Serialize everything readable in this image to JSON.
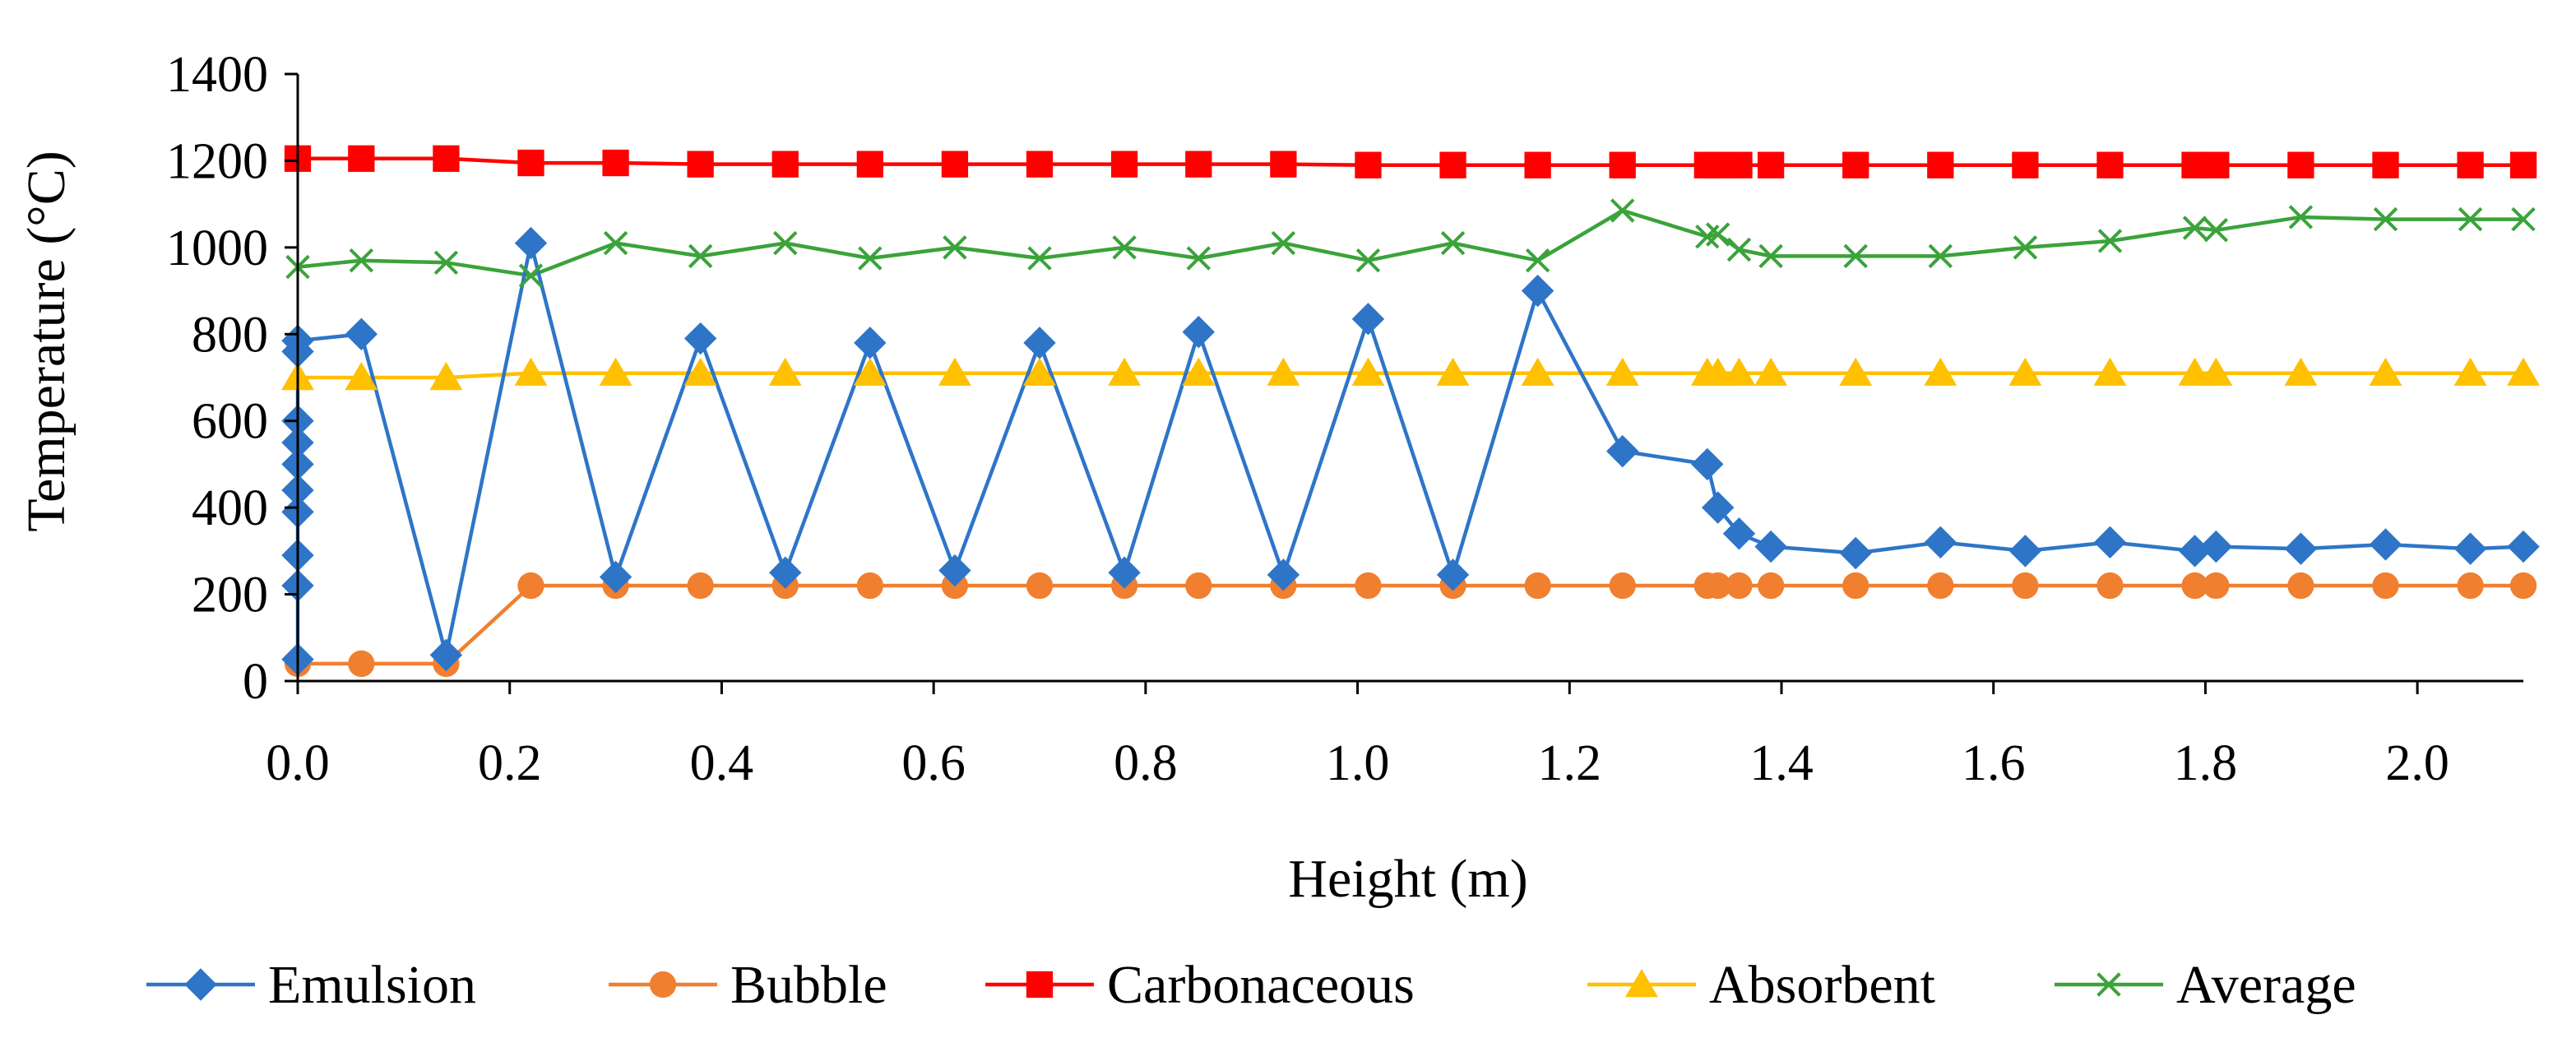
{
  "chart_data": {
    "type": "line",
    "title": "",
    "xlabel": "Height (m)",
    "ylabel": "Temperature (°C)",
    "xlim": [
      0,
      2.1
    ],
    "ylim": [
      0,
      1400
    ],
    "x_ticks": [
      "0.0",
      "0.2",
      "0.4",
      "0.6",
      "0.8",
      "1.0",
      "1.2",
      "1.4",
      "1.6",
      "1.8",
      "2.0"
    ],
    "x_tick_values": [
      0.0,
      0.2,
      0.4,
      0.6,
      0.8,
      1.0,
      1.2,
      1.4,
      1.6,
      1.8,
      2.0
    ],
    "y_ticks": [
      "0",
      "200",
      "400",
      "600",
      "800",
      "1000",
      "1200",
      "1400"
    ],
    "y_tick_values": [
      0,
      200,
      400,
      600,
      800,
      1000,
      1200,
      1400
    ],
    "grid": false,
    "legend_position": "bottom",
    "series": [
      {
        "name": "Emulsion",
        "color": "#2E75C8",
        "marker": "diamond",
        "x": [
          0.0,
          0.0,
          0.0,
          0.0,
          0.0,
          0.0,
          0.0,
          0.0,
          0.0,
          0.0,
          0.06,
          0.14,
          0.22,
          0.3,
          0.38,
          0.46,
          0.54,
          0.62,
          0.7,
          0.78,
          0.85,
          0.93,
          1.01,
          1.09,
          1.17,
          1.25,
          1.33,
          1.34,
          1.36,
          1.39,
          1.47,
          1.55,
          1.63,
          1.71,
          1.79,
          1.81,
          1.89,
          1.97,
          2.05,
          2.1
        ],
        "y": [
          50,
          220,
          290,
          390,
          440,
          500,
          550,
          600,
          760,
          785,
          800,
          60,
          1010,
          240,
          790,
          250,
          780,
          255,
          780,
          250,
          805,
          245,
          835,
          245,
          900,
          530,
          500,
          400,
          340,
          310,
          295,
          320,
          300,
          320,
          300,
          310,
          305,
          315,
          305,
          310
        ]
      },
      {
        "name": "Bubble",
        "color": "#F07F2F",
        "marker": "circle",
        "x": [
          0.0,
          0.06,
          0.14,
          0.22,
          0.3,
          0.38,
          0.46,
          0.54,
          0.62,
          0.7,
          0.78,
          0.85,
          0.93,
          1.01,
          1.09,
          1.17,
          1.25,
          1.33,
          1.34,
          1.36,
          1.39,
          1.47,
          1.55,
          1.63,
          1.71,
          1.79,
          1.81,
          1.89,
          1.97,
          2.05,
          2.1
        ],
        "y": [
          40,
          40,
          40,
          220,
          220,
          220,
          220,
          220,
          220,
          220,
          220,
          220,
          220,
          220,
          220,
          220,
          220,
          220,
          220,
          220,
          220,
          220,
          220,
          220,
          220,
          220,
          220,
          220,
          220,
          220,
          220
        ]
      },
      {
        "name": "Carbonaceous",
        "color": "#FF0000",
        "marker": "square",
        "x": [
          0.0,
          0.06,
          0.14,
          0.22,
          0.3,
          0.38,
          0.46,
          0.54,
          0.62,
          0.7,
          0.78,
          0.85,
          0.93,
          1.01,
          1.09,
          1.17,
          1.25,
          1.33,
          1.34,
          1.36,
          1.39,
          1.47,
          1.55,
          1.63,
          1.71,
          1.79,
          1.81,
          1.89,
          1.97,
          2.05,
          2.1
        ],
        "y": [
          1205,
          1205,
          1205,
          1195,
          1195,
          1192,
          1192,
          1192,
          1192,
          1192,
          1192,
          1192,
          1192,
          1190,
          1190,
          1190,
          1190,
          1190,
          1190,
          1190,
          1190,
          1190,
          1190,
          1190,
          1190,
          1190,
          1190,
          1190,
          1190,
          1190,
          1190
        ]
      },
      {
        "name": "Absorbent",
        "color": "#FFC000",
        "marker": "triangle",
        "x": [
          0.0,
          0.06,
          0.14,
          0.22,
          0.3,
          0.38,
          0.46,
          0.54,
          0.62,
          0.7,
          0.78,
          0.85,
          0.93,
          1.01,
          1.09,
          1.17,
          1.25,
          1.33,
          1.34,
          1.36,
          1.39,
          1.47,
          1.55,
          1.63,
          1.71,
          1.79,
          1.81,
          1.89,
          1.97,
          2.05,
          2.1
        ],
        "y": [
          700,
          700,
          700,
          710,
          710,
          710,
          710,
          710,
          710,
          710,
          710,
          710,
          710,
          710,
          710,
          710,
          710,
          710,
          710,
          710,
          710,
          710,
          710,
          710,
          710,
          710,
          710,
          710,
          710,
          710,
          710
        ]
      },
      {
        "name": "Average",
        "color": "#3AA33A",
        "marker": "x",
        "x": [
          0.0,
          0.06,
          0.14,
          0.22,
          0.3,
          0.38,
          0.46,
          0.54,
          0.62,
          0.7,
          0.78,
          0.85,
          0.93,
          1.01,
          1.09,
          1.17,
          1.25,
          1.33,
          1.34,
          1.36,
          1.39,
          1.47,
          1.55,
          1.63,
          1.71,
          1.79,
          1.81,
          1.89,
          1.97,
          2.05,
          2.1
        ],
        "y": [
          955,
          970,
          965,
          935,
          1010,
          980,
          1010,
          975,
          1000,
          975,
          1000,
          975,
          1010,
          970,
          1010,
          970,
          1085,
          1025,
          1030,
          995,
          980,
          980,
          980,
          1000,
          1015,
          1045,
          1040,
          1070,
          1065,
          1065,
          1065
        ]
      }
    ]
  }
}
